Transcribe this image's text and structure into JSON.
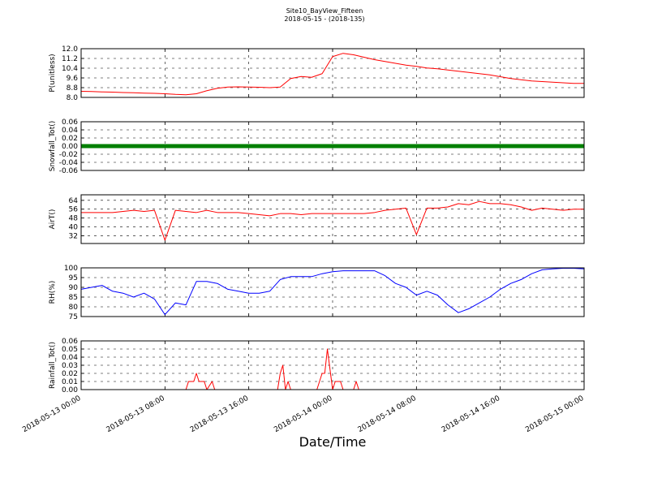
{
  "title": "Site10_BayView_Fifteen",
  "subtitle": "2018-05-15 - (2018-135)",
  "xlabel": "Date/Time",
  "chart_data": [
    {
      "type": "line",
      "ylabel": "P(unitless)",
      "color": "#ff0000",
      "linewidth": 1,
      "grid": true,
      "xlim": [
        "2018-05-13 00:00",
        "2018-05-15 00:00"
      ],
      "xticks": [
        "2018-05-13 00:00",
        "2018-05-13 08:00",
        "2018-05-13 16:00",
        "2018-05-14 00:00",
        "2018-05-14 08:00",
        "2018-05-14 16:00",
        "2018-05-15 00:00"
      ],
      "ylim": [
        8,
        12
      ],
      "yticks": [
        {
          "value": 8,
          "label": "8.0"
        },
        8.8,
        9.6,
        10.4,
        11.2,
        {
          "value": 12,
          "label": "12.0"
        }
      ],
      "x": [
        "2018-05-13 00:00",
        "2018-05-13 01:00",
        "2018-05-13 02:00",
        "2018-05-13 03:00",
        "2018-05-13 04:00",
        "2018-05-13 05:00",
        "2018-05-13 06:00",
        "2018-05-13 07:00",
        "2018-05-13 08:00",
        "2018-05-13 09:00",
        "2018-05-13 10:00",
        "2018-05-13 11:00",
        "2018-05-13 12:00",
        "2018-05-13 13:00",
        "2018-05-13 14:00",
        "2018-05-13 15:00",
        "2018-05-13 16:00",
        "2018-05-13 17:00",
        "2018-05-13 18:00",
        "2018-05-13 19:00",
        "2018-05-13 20:00",
        "2018-05-13 21:00",
        "2018-05-13 22:00",
        "2018-05-13 23:00",
        "2018-05-14 00:00",
        "2018-05-14 01:00",
        "2018-05-14 02:00",
        "2018-05-14 03:00",
        "2018-05-14 04:00",
        "2018-05-14 05:00",
        "2018-05-14 06:00",
        "2018-05-14 07:00",
        "2018-05-14 08:00",
        "2018-05-14 09:00",
        "2018-05-14 10:00",
        "2018-05-14 11:00",
        "2018-05-14 12:00",
        "2018-05-14 13:00",
        "2018-05-14 14:00",
        "2018-05-14 15:00",
        "2018-05-14 16:00",
        "2018-05-14 17:00",
        "2018-05-14 18:00",
        "2018-05-14 19:00",
        "2018-05-14 20:00",
        "2018-05-14 21:00",
        "2018-05-14 22:00",
        "2018-05-14 23:00",
        "2018-05-15 00:00"
      ],
      "values": [
        8.5,
        8.48,
        8.45,
        8.43,
        8.4,
        8.38,
        8.35,
        8.33,
        8.3,
        8.25,
        8.22,
        8.3,
        8.55,
        8.75,
        8.85,
        8.87,
        8.85,
        8.83,
        8.8,
        8.85,
        9.55,
        9.72,
        9.65,
        9.95,
        11.35,
        11.62,
        11.5,
        11.3,
        11.1,
        10.95,
        10.8,
        10.65,
        10.55,
        10.42,
        10.35,
        10.25,
        10.15,
        10.05,
        9.95,
        9.85,
        9.7,
        9.55,
        9.45,
        9.35,
        9.3,
        9.25,
        9.2,
        9.15,
        9.15
      ]
    },
    {
      "type": "line",
      "ylabel": "Snowfall_Tot()",
      "color": "#008000",
      "linewidth": 5,
      "grid": true,
      "xlim": [
        "2018-05-13 00:00",
        "2018-05-15 00:00"
      ],
      "xticks": [
        "2018-05-13 00:00",
        "2018-05-13 08:00",
        "2018-05-13 16:00",
        "2018-05-14 00:00",
        "2018-05-14 08:00",
        "2018-05-14 16:00",
        "2018-05-15 00:00"
      ],
      "ylim": [
        -0.06,
        0.06
      ],
      "yticks": [
        -0.06,
        -0.04,
        -0.02,
        {
          "value": 0,
          "label": "0.00"
        },
        0.02,
        0.04,
        0.06
      ],
      "x": [
        "2018-05-13 00:00",
        "2018-05-13 01:00",
        "2018-05-13 02:00",
        "2018-05-13 03:00",
        "2018-05-13 04:00",
        "2018-05-13 05:00",
        "2018-05-13 06:00",
        "2018-05-13 07:00",
        "2018-05-13 08:00",
        "2018-05-13 09:00",
        "2018-05-13 10:00",
        "2018-05-13 11:00",
        "2018-05-13 12:00",
        "2018-05-13 13:00",
        "2018-05-13 14:00",
        "2018-05-13 15:00",
        "2018-05-13 16:00",
        "2018-05-13 17:00",
        "2018-05-13 18:00",
        "2018-05-13 19:00",
        "2018-05-13 20:00",
        "2018-05-13 21:00",
        "2018-05-13 22:00",
        "2018-05-13 23:00",
        "2018-05-14 00:00",
        "2018-05-14 01:00",
        "2018-05-14 02:00",
        "2018-05-14 03:00",
        "2018-05-14 04:00",
        "2018-05-14 05:00",
        "2018-05-14 06:00",
        "2018-05-14 07:00",
        "2018-05-14 08:00",
        "2018-05-14 09:00",
        "2018-05-14 10:00",
        "2018-05-14 11:00",
        "2018-05-14 12:00",
        "2018-05-14 13:00",
        "2018-05-14 14:00",
        "2018-05-14 15:00",
        "2018-05-14 16:00",
        "2018-05-14 17:00",
        "2018-05-14 18:00",
        "2018-05-14 19:00",
        "2018-05-14 20:00",
        "2018-05-14 21:00",
        "2018-05-14 22:00",
        "2018-05-14 23:00",
        "2018-05-15 00:00"
      ],
      "values": [
        0,
        0,
        0,
        0,
        0,
        0,
        0,
        0,
        0,
        0,
        0,
        0,
        0,
        0,
        0,
        0,
        0,
        0,
        0,
        0,
        0,
        0,
        0,
        0,
        0,
        0,
        0,
        0,
        0,
        0,
        0,
        0,
        0,
        0,
        0,
        0,
        0,
        0,
        0,
        0,
        0,
        0,
        0,
        0,
        0,
        0,
        0,
        0,
        0
      ]
    },
    {
      "type": "line",
      "ylabel": "AirT()",
      "color": "#ff0000",
      "linewidth": 1,
      "grid": true,
      "xlim": [
        "2018-05-13 00:00",
        "2018-05-15 00:00"
      ],
      "xticks": [
        "2018-05-13 00:00",
        "2018-05-13 08:00",
        "2018-05-13 16:00",
        "2018-05-14 00:00",
        "2018-05-14 08:00",
        "2018-05-14 16:00",
        "2018-05-15 00:00"
      ],
      "ylim": [
        25,
        69
      ],
      "yticks": [
        32,
        40,
        48,
        56,
        64
      ],
      "x": [
        "2018-05-13 00:00",
        "2018-05-13 01:00",
        "2018-05-13 02:00",
        "2018-05-13 03:00",
        "2018-05-13 04:00",
        "2018-05-13 05:00",
        "2018-05-13 06:00",
        "2018-05-13 07:00",
        "2018-05-13 08:00",
        "2018-05-13 09:00",
        "2018-05-13 10:00",
        "2018-05-13 11:00",
        "2018-05-13 12:00",
        "2018-05-13 13:00",
        "2018-05-13 14:00",
        "2018-05-13 15:00",
        "2018-05-13 16:00",
        "2018-05-13 17:00",
        "2018-05-13 18:00",
        "2018-05-13 19:00",
        "2018-05-13 20:00",
        "2018-05-13 21:00",
        "2018-05-13 22:00",
        "2018-05-13 23:00",
        "2018-05-14 00:00",
        "2018-05-14 01:00",
        "2018-05-14 02:00",
        "2018-05-14 03:00",
        "2018-05-14 04:00",
        "2018-05-14 05:00",
        "2018-05-14 06:00",
        "2018-05-14 07:00",
        "2018-05-14 08:00",
        "2018-05-14 09:00",
        "2018-05-14 10:00",
        "2018-05-14 11:00",
        "2018-05-14 12:00",
        "2018-05-14 13:00",
        "2018-05-14 14:00",
        "2018-05-14 15:00",
        "2018-05-14 16:00",
        "2018-05-14 17:00",
        "2018-05-14 18:00",
        "2018-05-14 19:00",
        "2018-05-14 20:00",
        "2018-05-14 21:00",
        "2018-05-14 22:00",
        "2018-05-14 23:00",
        "2018-05-15 00:00"
      ],
      "values": [
        53,
        53,
        53,
        53,
        54,
        55,
        54,
        55,
        28,
        55,
        54,
        53,
        55,
        53,
        53,
        53,
        52,
        51,
        50,
        52,
        52,
        51,
        52,
        52,
        52,
        52,
        52,
        52,
        53,
        55,
        56,
        57,
        33,
        57,
        57,
        58,
        61,
        60,
        63,
        61,
        61,
        60,
        58,
        55,
        57,
        56,
        55,
        56,
        56
      ]
    },
    {
      "type": "line",
      "ylabel": "RH(%)",
      "color": "#0000ff",
      "linewidth": 1,
      "grid": true,
      "xlim": [
        "2018-05-13 00:00",
        "2018-05-15 00:00"
      ],
      "xticks": [
        "2018-05-13 00:00",
        "2018-05-13 08:00",
        "2018-05-13 16:00",
        "2018-05-14 00:00",
        "2018-05-14 08:00",
        "2018-05-14 16:00",
        "2018-05-15 00:00"
      ],
      "ylim": [
        75,
        100
      ],
      "yticks": [
        75,
        80,
        85,
        90,
        95,
        100
      ],
      "x": [
        "2018-05-13 00:00",
        "2018-05-13 01:00",
        "2018-05-13 02:00",
        "2018-05-13 03:00",
        "2018-05-13 04:00",
        "2018-05-13 05:00",
        "2018-05-13 06:00",
        "2018-05-13 07:00",
        "2018-05-13 08:00",
        "2018-05-13 09:00",
        "2018-05-13 10:00",
        "2018-05-13 11:00",
        "2018-05-13 12:00",
        "2018-05-13 13:00",
        "2018-05-13 14:00",
        "2018-05-13 15:00",
        "2018-05-13 16:00",
        "2018-05-13 17:00",
        "2018-05-13 18:00",
        "2018-05-13 19:00",
        "2018-05-13 20:00",
        "2018-05-13 21:00",
        "2018-05-13 22:00",
        "2018-05-13 23:00",
        "2018-05-14 00:00",
        "2018-05-14 01:00",
        "2018-05-14 02:00",
        "2018-05-14 03:00",
        "2018-05-14 04:00",
        "2018-05-14 05:00",
        "2018-05-14 06:00",
        "2018-05-14 07:00",
        "2018-05-14 08:00",
        "2018-05-14 09:00",
        "2018-05-14 10:00",
        "2018-05-14 11:00",
        "2018-05-14 12:00",
        "2018-05-14 13:00",
        "2018-05-14 14:00",
        "2018-05-14 15:00",
        "2018-05-14 16:00",
        "2018-05-14 17:00",
        "2018-05-14 18:00",
        "2018-05-14 19:00",
        "2018-05-14 20:00",
        "2018-05-14 21:00",
        "2018-05-14 22:00",
        "2018-05-14 23:00",
        "2018-05-15 00:00"
      ],
      "values": [
        89,
        90,
        91,
        88,
        87,
        85,
        87,
        84,
        76,
        82,
        81,
        93,
        93,
        92,
        89,
        88,
        87,
        87,
        88,
        94,
        95.5,
        95.5,
        95.5,
        97,
        98,
        98.5,
        98.5,
        98.5,
        98.5,
        96,
        92,
        90,
        86,
        88,
        86,
        81,
        77,
        79,
        82,
        85,
        89,
        92,
        94,
        97,
        99,
        99.5,
        99.8,
        99.8,
        99.5
      ]
    },
    {
      "type": "line",
      "ylabel": "Rainfall_Tot()",
      "color": "#ff0000",
      "linewidth": 1,
      "grid": true,
      "show_xtick_labels": true,
      "xlim": [
        "2018-05-13 00:00",
        "2018-05-15 00:00"
      ],
      "xticks": [
        "2018-05-13 00:00",
        "2018-05-13 08:00",
        "2018-05-13 16:00",
        "2018-05-14 00:00",
        "2018-05-14 08:00",
        "2018-05-14 16:00",
        "2018-05-15 00:00"
      ],
      "ylim": [
        0,
        0.06
      ],
      "yticks": [
        {
          "value": 0,
          "label": "0.00"
        },
        0.01,
        0.02,
        0.03,
        0.04,
        0.05,
        0.06
      ],
      "x": [
        "2018-05-13 00:00",
        "2018-05-13 10:00",
        "2018-05-13 10:15",
        "2018-05-13 10:45",
        "2018-05-13 11:00",
        "2018-05-13 11:15",
        "2018-05-13 11:45",
        "2018-05-13 12:00",
        "2018-05-13 12:30",
        "2018-05-13 12:45",
        "2018-05-13 18:45",
        "2018-05-13 19:00",
        "2018-05-13 19:15",
        "2018-05-13 19:30",
        "2018-05-13 19:45",
        "2018-05-13 20:00",
        "2018-05-13 22:30",
        "2018-05-13 22:45",
        "2018-05-13 23:00",
        "2018-05-13 23:15",
        "2018-05-13 23:30",
        "2018-05-14 00:00",
        "2018-05-14 00:15",
        "2018-05-14 00:45",
        "2018-05-14 01:00",
        "2018-05-14 02:00",
        "2018-05-14 02:15",
        "2018-05-14 02:30",
        "2018-05-15 00:00"
      ],
      "values": [
        0,
        0,
        0.01,
        0.01,
        0.02,
        0.01,
        0.01,
        0,
        0.01,
        0,
        0,
        0.02,
        0.03,
        0,
        0.01,
        0,
        0,
        0.01,
        0.02,
        0.02,
        0.05,
        0,
        0.01,
        0.01,
        0,
        0,
        0.01,
        0,
        0
      ]
    }
  ]
}
